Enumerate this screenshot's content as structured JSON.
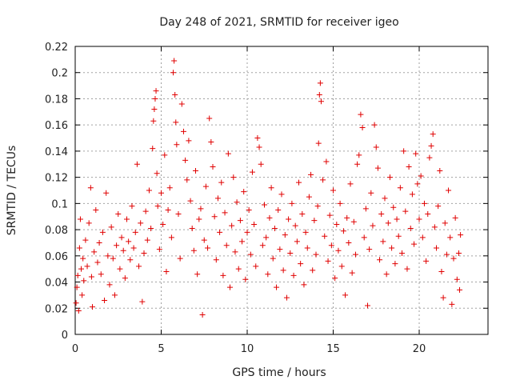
{
  "chart_data": {
    "type": "scatter",
    "title": "Day 248 of 2021, SRMTID for receiver igeo",
    "xlabel": "GPS time / hours",
    "ylabel": "SRMTID / TECUs",
    "xlim": [
      0,
      24
    ],
    "ylim": [
      0,
      0.22
    ],
    "xticks": [
      0,
      5,
      10,
      15,
      20
    ],
    "xtick_labels": [
      "0",
      "5",
      "10",
      "15",
      "20"
    ],
    "yticks": [
      0,
      0.02,
      0.04,
      0.06,
      0.08,
      0.1,
      0.12,
      0.14,
      0.16,
      0.18,
      0.2,
      0.22
    ],
    "ytick_labels": [
      "0",
      "0.02",
      "0.04",
      "0.06",
      "0.08",
      "0.1",
      "0.12",
      "0.14",
      "0.16",
      "0.18",
      "0.2",
      "0.22"
    ],
    "grid": true,
    "marker": "+",
    "color": "#e00000",
    "series": [
      {
        "name": "SRMTID",
        "points": [
          [
            0.05,
            0.024
          ],
          [
            0.1,
            0.036
          ],
          [
            0.15,
            0.045
          ],
          [
            0.2,
            0.018
          ],
          [
            0.25,
            0.066
          ],
          [
            0.3,
            0.088
          ],
          [
            0.35,
            0.05
          ],
          [
            0.4,
            0.03
          ],
          [
            0.45,
            0.058
          ],
          [
            0.5,
            0.041
          ],
          [
            0.6,
            0.072
          ],
          [
            0.7,
            0.052
          ],
          [
            0.8,
            0.085
          ],
          [
            0.9,
            0.112
          ],
          [
            0.95,
            0.044
          ],
          [
            1.0,
            0.021
          ],
          [
            1.1,
            0.063
          ],
          [
            1.2,
            0.095
          ],
          [
            1.3,
            0.055
          ],
          [
            1.4,
            0.07
          ],
          [
            1.5,
            0.046
          ],
          [
            1.6,
            0.078
          ],
          [
            1.7,
            0.026
          ],
          [
            1.8,
            0.108
          ],
          [
            1.9,
            0.06
          ],
          [
            2.0,
            0.038
          ],
          [
            2.1,
            0.082
          ],
          [
            2.2,
            0.058
          ],
          [
            2.3,
            0.03
          ],
          [
            2.4,
            0.068
          ],
          [
            2.5,
            0.092
          ],
          [
            2.6,
            0.05
          ],
          [
            2.7,
            0.074
          ],
          [
            2.8,
            0.064
          ],
          [
            2.9,
            0.043
          ],
          [
            3.0,
            0.088
          ],
          [
            3.1,
            0.071
          ],
          [
            3.2,
            0.057
          ],
          [
            3.3,
            0.098
          ],
          [
            3.4,
            0.066
          ],
          [
            3.5,
            0.078
          ],
          [
            3.6,
            0.13
          ],
          [
            3.7,
            0.052
          ],
          [
            3.8,
            0.085
          ],
          [
            3.9,
            0.025
          ],
          [
            4.0,
            0.062
          ],
          [
            4.1,
            0.094
          ],
          [
            4.2,
            0.072
          ],
          [
            4.3,
            0.11
          ],
          [
            4.4,
            0.081
          ],
          [
            4.5,
            0.142
          ],
          [
            4.55,
            0.163
          ],
          [
            4.6,
            0.172
          ],
          [
            4.65,
            0.18
          ],
          [
            4.7,
            0.186
          ],
          [
            4.75,
            0.123
          ],
          [
            4.8,
            0.098
          ],
          [
            4.9,
            0.065
          ],
          [
            5.0,
            0.108
          ],
          [
            5.1,
            0.084
          ],
          [
            5.2,
            0.137
          ],
          [
            5.3,
            0.048
          ],
          [
            5.4,
            0.095
          ],
          [
            5.5,
            0.112
          ],
          [
            5.6,
            0.074
          ],
          [
            5.7,
            0.2
          ],
          [
            5.75,
            0.209
          ],
          [
            5.8,
            0.183
          ],
          [
            5.85,
            0.162
          ],
          [
            5.9,
            0.145
          ],
          [
            6.0,
            0.092
          ],
          [
            6.1,
            0.058
          ],
          [
            6.2,
            0.176
          ],
          [
            6.3,
            0.155
          ],
          [
            6.4,
            0.133
          ],
          [
            6.5,
            0.118
          ],
          [
            6.6,
            0.148
          ],
          [
            6.7,
            0.102
          ],
          [
            6.8,
            0.081
          ],
          [
            6.9,
            0.064
          ],
          [
            7.0,
            0.125
          ],
          [
            7.1,
            0.046
          ],
          [
            7.2,
            0.088
          ],
          [
            7.3,
            0.096
          ],
          [
            7.4,
            0.015
          ],
          [
            7.5,
            0.072
          ],
          [
            7.6,
            0.113
          ],
          [
            7.7,
            0.066
          ],
          [
            7.8,
            0.165
          ],
          [
            7.9,
            0.147
          ],
          [
            8.0,
            0.128
          ],
          [
            8.1,
            0.09
          ],
          [
            8.2,
            0.057
          ],
          [
            8.3,
            0.104
          ],
          [
            8.4,
            0.078
          ],
          [
            8.5,
            0.116
          ],
          [
            8.6,
            0.045
          ],
          [
            8.7,
            0.093
          ],
          [
            8.8,
            0.068
          ],
          [
            8.9,
            0.138
          ],
          [
            9.0,
            0.036
          ],
          [
            9.1,
            0.083
          ],
          [
            9.2,
            0.12
          ],
          [
            9.3,
            0.063
          ],
          [
            9.4,
            0.101
          ],
          [
            9.5,
            0.05
          ],
          [
            9.6,
            0.087
          ],
          [
            9.7,
            0.071
          ],
          [
            9.8,
            0.109
          ],
          [
            9.9,
            0.042
          ],
          [
            10.0,
            0.078
          ],
          [
            10.1,
            0.095
          ],
          [
            10.2,
            0.061
          ],
          [
            10.3,
            0.124
          ],
          [
            10.4,
            0.084
          ],
          [
            10.5,
            0.052
          ],
          [
            10.6,
            0.15
          ],
          [
            10.7,
            0.143
          ],
          [
            10.8,
            0.13
          ],
          [
            10.9,
            0.068
          ],
          [
            11.0,
            0.099
          ],
          [
            11.1,
            0.074
          ],
          [
            11.2,
            0.046
          ],
          [
            11.3,
            0.089
          ],
          [
            11.4,
            0.112
          ],
          [
            11.5,
            0.058
          ],
          [
            11.6,
            0.081
          ],
          [
            11.7,
            0.036
          ],
          [
            11.8,
            0.095
          ],
          [
            11.9,
            0.065
          ],
          [
            12.0,
            0.107
          ],
          [
            12.1,
            0.049
          ],
          [
            12.2,
            0.076
          ],
          [
            12.3,
            0.028
          ],
          [
            12.4,
            0.088
          ],
          [
            12.5,
            0.062
          ],
          [
            12.6,
            0.1
          ],
          [
            12.7,
            0.045
          ],
          [
            12.8,
            0.083
          ],
          [
            12.9,
            0.071
          ],
          [
            13.0,
            0.116
          ],
          [
            13.1,
            0.054
          ],
          [
            13.2,
            0.092
          ],
          [
            13.3,
            0.038
          ],
          [
            13.4,
            0.078
          ],
          [
            13.5,
            0.066
          ],
          [
            13.6,
            0.105
          ],
          [
            13.7,
            0.122
          ],
          [
            13.8,
            0.049
          ],
          [
            13.9,
            0.087
          ],
          [
            14.0,
            0.061
          ],
          [
            14.1,
            0.098
          ],
          [
            14.15,
            0.146
          ],
          [
            14.2,
            0.183
          ],
          [
            14.25,
            0.192
          ],
          [
            14.3,
            0.178
          ],
          [
            14.4,
            0.118
          ],
          [
            14.5,
            0.075
          ],
          [
            14.6,
            0.132
          ],
          [
            14.7,
            0.056
          ],
          [
            14.8,
            0.091
          ],
          [
            14.9,
            0.068
          ],
          [
            15.0,
            0.11
          ],
          [
            15.1,
            0.043
          ],
          [
            15.2,
            0.084
          ],
          [
            15.3,
            0.064
          ],
          [
            15.4,
            0.1
          ],
          [
            15.5,
            0.052
          ],
          [
            15.6,
            0.079
          ],
          [
            15.7,
            0.03
          ],
          [
            15.8,
            0.089
          ],
          [
            15.9,
            0.07
          ],
          [
            16.0,
            0.115
          ],
          [
            16.1,
            0.047
          ],
          [
            16.2,
            0.086
          ],
          [
            16.3,
            0.061
          ],
          [
            16.4,
            0.13
          ],
          [
            16.5,
            0.137
          ],
          [
            16.6,
            0.168
          ],
          [
            16.7,
            0.158
          ],
          [
            16.8,
            0.074
          ],
          [
            16.9,
            0.096
          ],
          [
            17.0,
            0.022
          ],
          [
            17.1,
            0.065
          ],
          [
            17.2,
            0.108
          ],
          [
            17.3,
            0.083
          ],
          [
            17.4,
            0.16
          ],
          [
            17.5,
            0.143
          ],
          [
            17.6,
            0.127
          ],
          [
            17.7,
            0.057
          ],
          [
            17.8,
            0.092
          ],
          [
            17.9,
            0.071
          ],
          [
            18.0,
            0.104
          ],
          [
            18.1,
            0.046
          ],
          [
            18.2,
            0.085
          ],
          [
            18.3,
            0.12
          ],
          [
            18.4,
            0.066
          ],
          [
            18.5,
            0.097
          ],
          [
            18.6,
            0.054
          ],
          [
            18.7,
            0.088
          ],
          [
            18.8,
            0.075
          ],
          [
            18.9,
            0.112
          ],
          [
            19.0,
            0.062
          ],
          [
            19.1,
            0.14
          ],
          [
            19.2,
            0.094
          ],
          [
            19.3,
            0.05
          ],
          [
            19.4,
            0.128
          ],
          [
            19.5,
            0.081
          ],
          [
            19.6,
            0.107
          ],
          [
            19.7,
            0.069
          ],
          [
            19.8,
            0.138
          ],
          [
            19.9,
            0.115
          ],
          [
            20.0,
            0.088
          ],
          [
            20.1,
            0.121
          ],
          [
            20.2,
            0.074
          ],
          [
            20.3,
            0.1
          ],
          [
            20.4,
            0.056
          ],
          [
            20.5,
            0.092
          ],
          [
            20.6,
            0.135
          ],
          [
            20.7,
            0.144
          ],
          [
            20.8,
            0.153
          ],
          [
            20.9,
            0.082
          ],
          [
            21.0,
            0.066
          ],
          [
            21.1,
            0.098
          ],
          [
            21.2,
            0.125
          ],
          [
            21.3,
            0.048
          ],
          [
            21.4,
            0.028
          ],
          [
            21.5,
            0.085
          ],
          [
            21.6,
            0.061
          ],
          [
            21.7,
            0.11
          ],
          [
            21.8,
            0.074
          ],
          [
            21.9,
            0.023
          ],
          [
            22.0,
            0.058
          ],
          [
            22.1,
            0.089
          ],
          [
            22.2,
            0.042
          ],
          [
            22.3,
            0.062
          ],
          [
            22.35,
            0.034
          ],
          [
            22.4,
            0.076
          ]
        ]
      }
    ]
  }
}
